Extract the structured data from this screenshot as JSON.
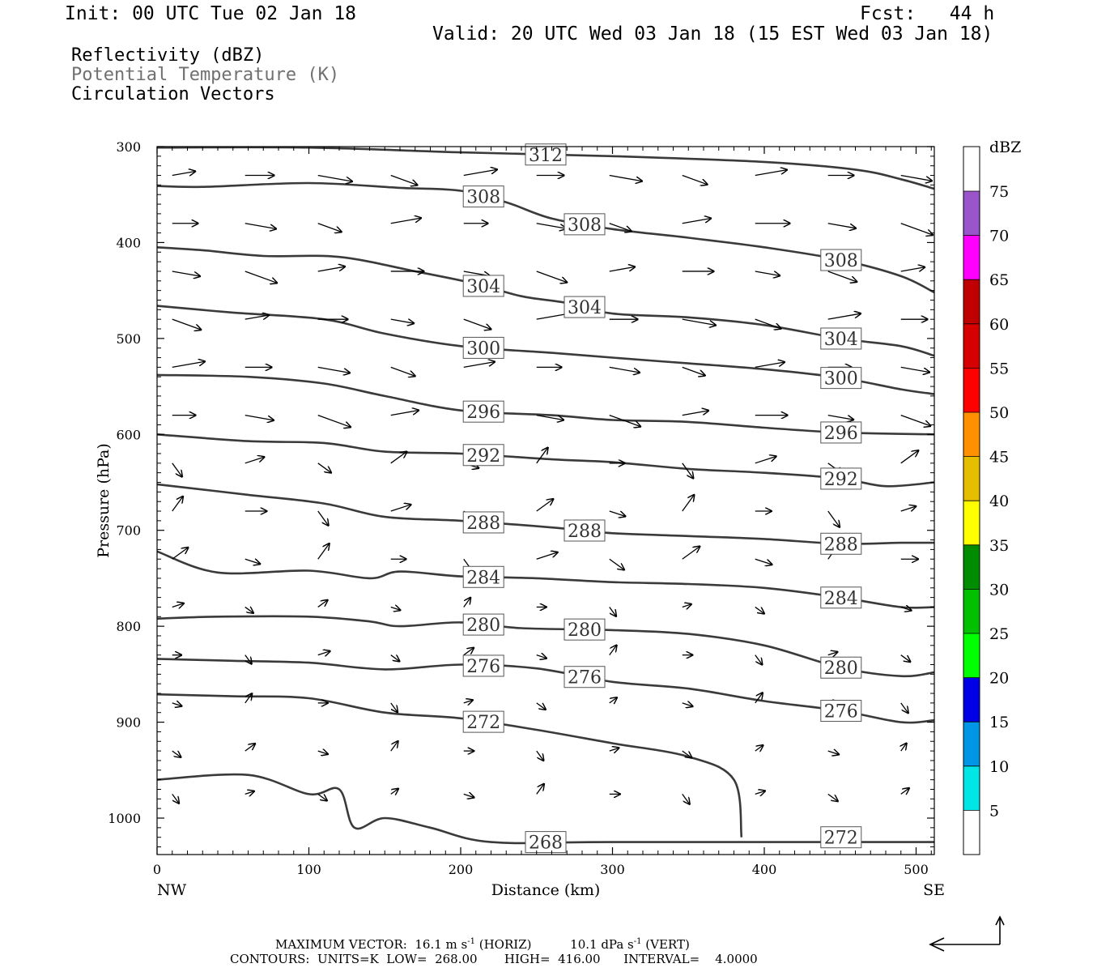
{
  "header": {
    "init": "Init: 00 UTC Tue 02 Jan 18",
    "fcst": "Fcst:   44 h",
    "valid": "Valid: 20 UTC Wed 03 Jan 18 (15 EST Wed 03 Jan 18)"
  },
  "legend_lines": {
    "line1": "Reflectivity (dBZ)",
    "line2": "Potential Temperature (K)",
    "line3": "Circulation Vectors"
  },
  "footer": {
    "vector_line_a": "MAXIMUM VECTOR:  16.1 m s",
    "vector_sup_a": "-1",
    "vector_line_b": " (HORIZ)          10.1 dPa s",
    "vector_sup_b": "-1",
    "vector_line_c": " (VERT)",
    "contour_line": "CONTOURS:  UNITS=K  LOW=  268.00       HIGH=  416.00      INTERVAL=    4.0000"
  },
  "colors": {
    "contour": "#3a3a3a",
    "muted_text": "#707070",
    "frame": "#000000"
  },
  "chart_data": {
    "type": "line",
    "title": "",
    "xlabel": "Distance (km)",
    "ylabel": "Pressure (hPa)",
    "xlim": [
      0,
      512
    ],
    "ylim": [
      1038,
      300
    ],
    "yreversed": true,
    "x_ticks": [
      "0",
      "100",
      "200",
      "300",
      "400",
      "500"
    ],
    "y_ticks": [
      "300",
      "400",
      "500",
      "600",
      "700",
      "800",
      "900",
      "1000"
    ],
    "x_end_labels": {
      "left": "NW",
      "right": "SE"
    },
    "colorbar": {
      "unit": "dBZ",
      "levels": [
        "5",
        "10",
        "15",
        "20",
        "25",
        "30",
        "35",
        "40",
        "45",
        "50",
        "55",
        "60",
        "65",
        "70",
        "75"
      ],
      "colors": [
        "#ffffff",
        "#00e6e6",
        "#0096e6",
        "#0000e6",
        "#00ff00",
        "#00c000",
        "#008c00",
        "#ffff00",
        "#e6be00",
        "#ff9100",
        "#ff0000",
        "#d70000",
        "#c00000",
        "#ff00ff",
        "#9955c9",
        "#ffffff"
      ]
    },
    "isentropes": [
      {
        "theta": 312,
        "labels": [
          "312"
        ],
        "points": [
          [
            0,
            301
          ],
          [
            100,
            301
          ],
          [
            200,
            306
          ],
          [
            300,
            310
          ],
          [
            400,
            316
          ],
          [
            460,
            324
          ],
          [
            490,
            334
          ],
          [
            512,
            344
          ]
        ]
      },
      {
        "theta": 308,
        "labels": [
          "308",
          "308",
          "308"
        ],
        "points": [
          [
            0,
            341
          ],
          [
            30,
            342
          ],
          [
            100,
            338
          ],
          [
            160,
            343
          ],
          [
            200,
            346
          ],
          [
            230,
            358
          ],
          [
            260,
            375
          ],
          [
            300,
            386
          ],
          [
            350,
            395
          ],
          [
            400,
            405
          ],
          [
            450,
            418
          ],
          [
            490,
            435
          ],
          [
            512,
            452
          ]
        ]
      },
      {
        "theta": 304,
        "labels": [
          "304",
          "304",
          "304"
        ],
        "points": [
          [
            0,
            405
          ],
          [
            30,
            408
          ],
          [
            70,
            414
          ],
          [
            120,
            415
          ],
          [
            170,
            430
          ],
          [
            210,
            443
          ],
          [
            240,
            456
          ],
          [
            270,
            463
          ],
          [
            300,
            474
          ],
          [
            350,
            478
          ],
          [
            400,
            486
          ],
          [
            450,
            500
          ],
          [
            490,
            508
          ],
          [
            512,
            518
          ]
        ]
      },
      {
        "theta": 300,
        "labels": [
          "300",
          "300"
        ],
        "points": [
          [
            0,
            466
          ],
          [
            50,
            473
          ],
          [
            110,
            480
          ],
          [
            150,
            495
          ],
          [
            200,
            508
          ],
          [
            260,
            515
          ],
          [
            300,
            520
          ],
          [
            350,
            526
          ],
          [
            400,
            532
          ],
          [
            450,
            541
          ],
          [
            490,
            553
          ],
          [
            512,
            558
          ]
        ]
      },
      {
        "theta": 296,
        "labels": [
          "296",
          "296"
        ],
        "points": [
          [
            0,
            538
          ],
          [
            60,
            540
          ],
          [
            110,
            547
          ],
          [
            150,
            560
          ],
          [
            200,
            575
          ],
          [
            260,
            580
          ],
          [
            300,
            585
          ],
          [
            350,
            587
          ],
          [
            400,
            593
          ],
          [
            450,
            598
          ],
          [
            512,
            600
          ]
        ]
      },
      {
        "theta": 292,
        "labels": [
          "292",
          "292"
        ],
        "points": [
          [
            0,
            600
          ],
          [
            60,
            607
          ],
          [
            110,
            609
          ],
          [
            150,
            618
          ],
          [
            200,
            620
          ],
          [
            260,
            626
          ],
          [
            300,
            629
          ],
          [
            350,
            636
          ],
          [
            400,
            640
          ],
          [
            450,
            646
          ],
          [
            480,
            654
          ],
          [
            512,
            650
          ]
        ]
      },
      {
        "theta": 288,
        "labels": [
          "288",
          "288",
          "288"
        ],
        "points": [
          [
            0,
            652
          ],
          [
            60,
            663
          ],
          [
            110,
            672
          ],
          [
            150,
            686
          ],
          [
            200,
            690
          ],
          [
            260,
            697
          ],
          [
            300,
            703
          ],
          [
            350,
            706
          ],
          [
            400,
            709
          ],
          [
            450,
            714
          ],
          [
            490,
            713
          ],
          [
            512,
            713
          ]
        ]
      },
      {
        "theta": 284,
        "labels": [
          "284",
          "284"
        ],
        "points": [
          [
            0,
            722
          ],
          [
            40,
            744
          ],
          [
            100,
            742
          ],
          [
            140,
            750
          ],
          [
            160,
            743
          ],
          [
            200,
            748
          ],
          [
            250,
            750
          ],
          [
            300,
            754
          ],
          [
            350,
            756
          ],
          [
            400,
            760
          ],
          [
            450,
            770
          ],
          [
            490,
            780
          ],
          [
            512,
            780
          ]
        ]
      },
      {
        "theta": 280,
        "labels": [
          "280",
          "280",
          "280"
        ],
        "points": [
          [
            0,
            792
          ],
          [
            40,
            790
          ],
          [
            100,
            790
          ],
          [
            140,
            795
          ],
          [
            160,
            800
          ],
          [
            200,
            796
          ],
          [
            240,
            802
          ],
          [
            300,
            804
          ],
          [
            350,
            808
          ],
          [
            400,
            820
          ],
          [
            450,
            843
          ],
          [
            490,
            852
          ],
          [
            512,
            848
          ]
        ]
      },
      {
        "theta": 276,
        "labels": [
          "276",
          "276",
          "276"
        ],
        "points": [
          [
            0,
            834
          ],
          [
            50,
            836
          ],
          [
            100,
            838
          ],
          [
            150,
            845
          ],
          [
            200,
            840
          ],
          [
            250,
            844
          ],
          [
            300,
            858
          ],
          [
            350,
            865
          ],
          [
            400,
            878
          ],
          [
            450,
            888
          ],
          [
            490,
            900
          ],
          [
            512,
            898
          ]
        ]
      },
      {
        "theta": 272,
        "labels": [
          "272",
          "272"
        ],
        "points": [
          [
            0,
            871
          ],
          [
            50,
            873
          ],
          [
            100,
            875
          ],
          [
            150,
            890
          ],
          [
            200,
            896
          ],
          [
            250,
            908
          ],
          [
            300,
            922
          ],
          [
            350,
            936
          ],
          [
            380,
            960
          ],
          [
            385,
            1020
          ]
        ]
      },
      {
        "theta": 268,
        "labels": [
          "268"
        ],
        "points": [
          [
            0,
            960
          ],
          [
            60,
            955
          ],
          [
            100,
            975
          ],
          [
            120,
            970
          ],
          [
            130,
            1010
          ],
          [
            150,
            1000
          ],
          [
            180,
            1010
          ],
          [
            220,
            1025
          ],
          [
            300,
            1025
          ],
          [
            512,
            1025
          ]
        ]
      }
    ]
  }
}
